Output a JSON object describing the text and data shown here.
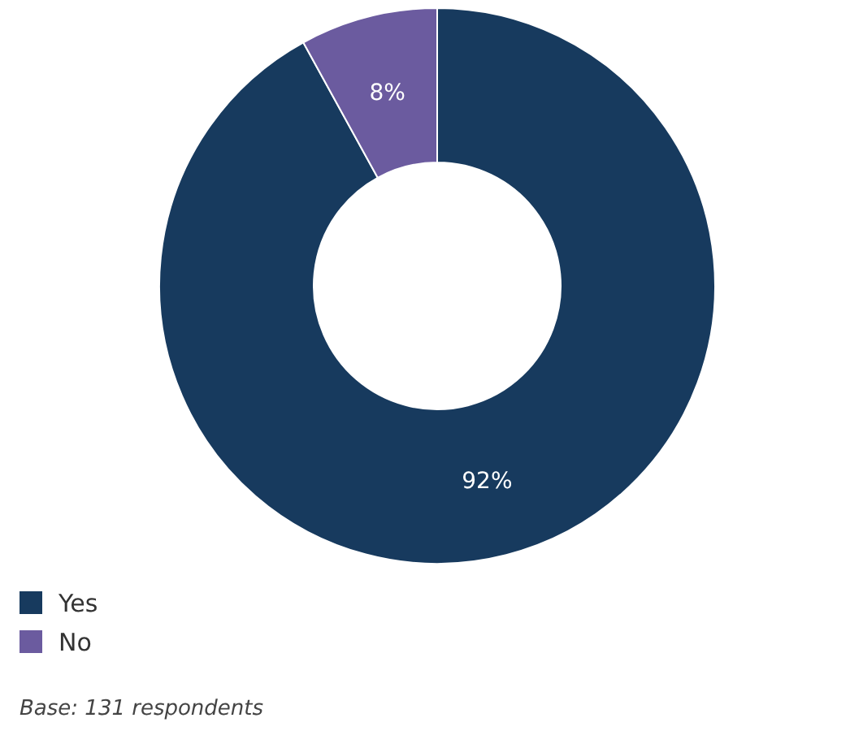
{
  "chart_data": {
    "type": "donut",
    "categories": [
      "Yes",
      "No"
    ],
    "values": [
      92,
      8
    ],
    "colors": [
      "#173a5e",
      "#6b5b9f"
    ],
    "value_labels": [
      "92%",
      "8%"
    ],
    "legend": "bottom left",
    "annotations": [
      "Base: 131 respondents"
    ]
  }
}
